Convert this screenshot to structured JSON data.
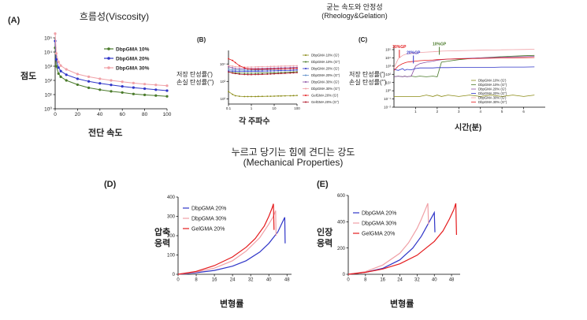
{
  "headers": {
    "viscosity_title": "흐름성(Viscosity)",
    "rheology_title_line1": "굳는 속도와 안정성",
    "rheology_title_line2": "(Rheology&Gelation)",
    "mech_title_line1": "누르고 당기는 힘에 견디는 강도",
    "mech_title_line2": "(Mechanical Properties)"
  },
  "panels": {
    "A": "(A)",
    "B": "(B)",
    "C": "(C)",
    "D": "(D)",
    "E": "(E)"
  },
  "labels": {
    "A_ylabel": "점도",
    "A_xlabel": "전단 속도",
    "B_ylabel_1": "저장 탄성률(')",
    "B_ylabel_2": "손실 탄성률('')",
    "B_xlabel": "각 주파수",
    "C_ylabel_1": "저장 탄성률(')",
    "C_ylabel_2": "손실 탄성률('')",
    "C_xlabel": "시간(분)",
    "D_ylabel_1": "압축",
    "D_ylabel_2": "응력",
    "D_xlabel": "변형률",
    "E_ylabel_1": "인장",
    "E_ylabel_2": "응력",
    "E_xlabel": "변형률"
  },
  "colors": {
    "green": "#4a7a2a",
    "blue": "#2f35c8",
    "pink": "#f0a0a6",
    "red": "#e41a1c",
    "olive": "#8a8a14",
    "purple": "#8a4fa3",
    "steel": "#5e8fc9",
    "darkred": "#b0182b"
  },
  "chart_data": [
    {
      "id": "A",
      "type": "line",
      "x": [
        0,
        1,
        3,
        5,
        10,
        20,
        30,
        40,
        50,
        60,
        70,
        80,
        90,
        100
      ],
      "series": [
        {
          "name": "DbpGMA 10%",
          "color": "green",
          "values": [
            20000,
            1000,
            300,
            180,
            100,
            50,
            30,
            22,
            17,
            14,
            11,
            9.5,
            8.5,
            7.5
          ]
        },
        {
          "name": "DbpGMA 20%",
          "color": "blue",
          "values": [
            60000,
            3000,
            800,
            450,
            250,
            130,
            85,
            62,
            48,
            38,
            31,
            26,
            22,
            19
          ]
        },
        {
          "name": "DbpGMA 30%",
          "color": "pink",
          "values": [
            200000,
            8000,
            2000,
            1100,
            600,
            280,
            180,
            130,
            100,
            80,
            65,
            55,
            48,
            42
          ]
        }
      ],
      "xticks": [
        0,
        20,
        40,
        60,
        80,
        100
      ],
      "yticks": [
        1,
        10,
        100,
        1000,
        10000,
        100000
      ],
      "ytick_labels": [
        "10⁰",
        "10¹",
        "10²",
        "10³",
        "10⁴",
        "10⁵"
      ],
      "ylog": true,
      "xlim": [
        0,
        100
      ],
      "ylim": [
        1,
        100000
      ],
      "legend": "top-right"
    },
    {
      "id": "B",
      "type": "line",
      "x": [
        0.1,
        0.15,
        0.2,
        0.3,
        0.5,
        0.7,
        1,
        1.5,
        2,
        3,
        5,
        7,
        10,
        15,
        20,
        30,
        50,
        70,
        100
      ],
      "xticks": [
        0.1,
        1,
        10,
        100
      ],
      "xtick_labels": [
        "0.1",
        "1",
        "10",
        "100"
      ],
      "yticks": [
        100,
        1000,
        10000
      ],
      "ytick_labels": [
        "10²",
        "10³",
        "10⁴"
      ],
      "xlog": true,
      "ylog": true,
      "xlim": [
        0.1,
        100
      ],
      "ylim": [
        50,
        60000
      ],
      "legend": "right",
      "series": [
        {
          "name": "DbpGMA 10% (G')",
          "color": "olive",
          "values": [
            260,
            180,
            150,
            140,
            135,
            135,
            135,
            135,
            137,
            138,
            140,
            140,
            142,
            145,
            145,
            148,
            150,
            152,
            155
          ]
        },
        {
          "name": "DbpGMA 10% (G\")",
          "color": "green",
          "values": [
            3500,
            3200,
            3100,
            3000,
            2950,
            2950,
            2950,
            2950,
            2980,
            3000,
            3050,
            3100,
            3150,
            3200,
            3250,
            3300,
            3400,
            3500,
            3600
          ]
        },
        {
          "name": "DbpGMA 20% (G')",
          "color": "blue",
          "values": [
            4000,
            3900,
            3850,
            3800,
            3800,
            3800,
            3820,
            3850,
            3870,
            3900,
            3950,
            4000,
            4050,
            4100,
            4200,
            4250,
            4300,
            4400,
            4500
          ]
        },
        {
          "name": "DbpGMA 20% (G\")",
          "color": "steel",
          "values": [
            5000,
            4800,
            4600,
            4500,
            4400,
            4400,
            4450,
            4500,
            4550,
            4600,
            4700,
            4800,
            4900,
            5000,
            5100,
            5200,
            5300,
            5400,
            5500
          ]
        },
        {
          "name": "DbpGMA 30% (G')",
          "color": "purple",
          "values": [
            7000,
            6000,
            5500,
            5400,
            5300,
            5300,
            5350,
            5400,
            5450,
            5500,
            5600,
            5700,
            5800,
            5900,
            6000,
            6100,
            6200,
            6300,
            6400
          ]
        },
        {
          "name": "DbpGMA 30% (G\")",
          "color": "pink",
          "values": [
            8000,
            7500,
            7000,
            6800,
            6600,
            6600,
            6700,
            6800,
            6900,
            7000,
            7100,
            7200,
            7300,
            7400,
            7500,
            7600,
            7700,
            7800,
            7900
          ]
        },
        {
          "name": "GelGMA 20% (G')",
          "color": "red",
          "values": [
            20000,
            16000,
            12000,
            8000,
            6000,
            5200,
            5000,
            5000,
            5000,
            5000,
            5050,
            5100,
            5150,
            5200,
            5250,
            5300,
            5400,
            5500,
            5600
          ]
        },
        {
          "name": "GelGMA 20% (G\")",
          "color": "darkred",
          "values": [
            3500,
            3000,
            2800,
            2600,
            2500,
            2450,
            2450,
            2480,
            2500,
            2550,
            2600,
            2650,
            2700,
            2800,
            2850,
            2900,
            3000,
            3100,
            3200
          ]
        }
      ]
    },
    {
      "id": "C",
      "type": "line",
      "x": [
        0,
        0.2,
        0.4,
        0.5,
        0.6,
        0.8,
        1.0,
        1.2,
        1.5,
        1.8,
        2.0,
        2.2,
        2.5,
        3.0,
        3.5,
        4.0,
        4.5,
        5.0,
        5.5,
        6.0,
        6.5
      ],
      "xticks": [
        1,
        2,
        3,
        4,
        5,
        6
      ],
      "yticks": [
        0.01,
        0.1,
        1,
        10,
        100,
        1000,
        10000,
        100000
      ],
      "ytick_labels": [
        "10⁻²",
        "10⁻¹",
        "10⁰",
        "10¹",
        "10²",
        "10³",
        "10⁴",
        "10⁵"
      ],
      "ylog": true,
      "xlim": [
        0,
        7
      ],
      "ylim": [
        0.01,
        300000
      ],
      "legend": "bottom-right",
      "annotations": [
        {
          "text": "30%GP",
          "x": 0.25,
          "y": 40000,
          "color": "red"
        },
        {
          "text": "20%GP",
          "x": 0.9,
          "y": 8000,
          "color": "blue"
        },
        {
          "text": "10%GP",
          "x": 2.1,
          "y": 90000,
          "color": "green"
        }
      ],
      "series": [
        {
          "name": "DbpGMA 10% (G')",
          "color": "olive",
          "values": [
            0.2,
            0.2,
            0.2,
            0.2,
            0.2,
            0.2,
            0.2,
            0.2,
            0.3,
            0.2,
            0.3,
            0.2,
            0.3,
            0.2,
            0.3,
            0.2,
            0.3,
            0.2,
            0.3,
            0.2,
            0.3
          ]
        },
        {
          "name": "DbpGMA 10% (G\")",
          "color": "green",
          "values": [
            50,
            60,
            50,
            60,
            50,
            60,
            50,
            60,
            50,
            60,
            50,
            3000,
            4000,
            6000,
            8000,
            10000,
            12000,
            14000,
            16000,
            18000,
            20000
          ]
        },
        {
          "name": "DbpGMA 20% (G')",
          "color": "purple",
          "values": [
            50,
            60,
            50,
            60,
            50,
            60,
            1000,
            2000,
            3000,
            4000,
            5000,
            6000,
            7000,
            8000,
            9000,
            10000,
            11000,
            12000,
            13000,
            14000,
            15000
          ]
        },
        {
          "name": "DbpGMA 20% (G\")",
          "color": "blue",
          "values": [
            400,
            300,
            500,
            300,
            400,
            350,
            500,
            600,
            600,
            600,
            650,
            650,
            650,
            700,
            700,
            700,
            700,
            750,
            750,
            750,
            800
          ]
        },
        {
          "name": "DbpGMA 30% (G')",
          "color": "pink",
          "values": [
            600,
            8000,
            20000,
            25000,
            30000,
            35000,
            40000,
            45000,
            50000,
            55000,
            60000,
            65000,
            70000,
            75000,
            80000,
            85000,
            90000,
            95000,
            100000,
            105000,
            110000
          ]
        },
        {
          "name": "DbpGMA 30% (G\")",
          "color": "red",
          "values": [
            300,
            1000,
            2000,
            2500,
            3000,
            3500,
            4000,
            4500,
            5000,
            5500,
            6000,
            6500,
            7000,
            7500,
            8000,
            8500,
            9000,
            9500,
            10000,
            10500,
            11000
          ]
        }
      ]
    },
    {
      "id": "D",
      "type": "line",
      "xticks": [
        0,
        8,
        16,
        24,
        32,
        40,
        48
      ],
      "yticks": [
        0,
        100,
        200,
        300,
        400
      ],
      "xlim": [
        0,
        50
      ],
      "ylim": [
        0,
        400
      ],
      "legend": "top-left",
      "series": [
        {
          "name": "DbpGMA 20%",
          "color": "blue",
          "x": [
            0,
            8,
            16,
            24,
            30,
            36,
            40,
            44,
            46,
            47,
            47.2
          ],
          "values": [
            0,
            8,
            20,
            42,
            70,
            115,
            160,
            220,
            270,
            295,
            160
          ]
        },
        {
          "name": "DbpGMA 30%",
          "color": "pink",
          "x": [
            0,
            8,
            16,
            24,
            30,
            36,
            40,
            42,
            43,
            43.2
          ],
          "values": [
            0,
            12,
            32,
            70,
            120,
            190,
            260,
            300,
            330,
            200
          ]
        },
        {
          "name": "GelGMA 20%",
          "color": "red",
          "x": [
            0,
            8,
            16,
            24,
            30,
            34,
            38,
            40,
            41.5,
            42,
            42.3
          ],
          "values": [
            0,
            15,
            45,
            90,
            140,
            185,
            250,
            300,
            345,
            365,
            230
          ]
        }
      ]
    },
    {
      "id": "E",
      "type": "line",
      "xticks": [
        0,
        8,
        16,
        24,
        32,
        40,
        48
      ],
      "yticks": [
        0,
        200,
        400,
        600
      ],
      "xlim": [
        0,
        52
      ],
      "ylim": [
        0,
        600
      ],
      "legend": "top-left",
      "series": [
        {
          "name": "DbpGMA 20%",
          "color": "blue",
          "x": [
            0,
            8,
            16,
            24,
            30,
            34,
            37,
            39,
            40,
            40.3
          ],
          "values": [
            0,
            15,
            45,
            110,
            200,
            290,
            380,
            440,
            470,
            320
          ]
        },
        {
          "name": "DbpGMA 30%",
          "color": "pink",
          "x": [
            0,
            8,
            16,
            24,
            28,
            32,
            34,
            36,
            37,
            37.3
          ],
          "values": [
            0,
            20,
            70,
            160,
            240,
            350,
            420,
            500,
            540,
            380
          ]
        },
        {
          "name": "GelGMA 20%",
          "color": "red",
          "x": [
            0,
            8,
            16,
            24,
            32,
            40,
            44,
            47,
            49,
            50,
            50.3
          ],
          "values": [
            0,
            15,
            40,
            80,
            145,
            250,
            330,
            420,
            490,
            540,
            300
          ]
        }
      ]
    }
  ]
}
